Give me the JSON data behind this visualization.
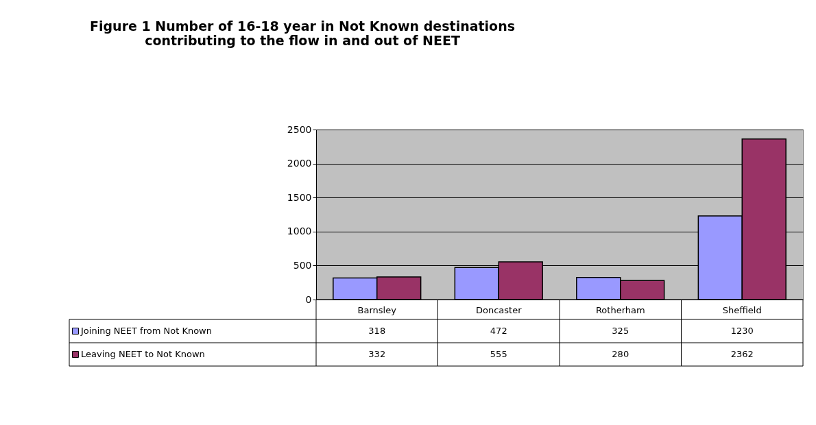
{
  "chart_data": {
    "type": "bar",
    "title": "Figure 1 Number of 16-18 year in Not Known destinations contributing to the flow in and out of NEET",
    "categories": [
      "Barnsley",
      "Doncaster",
      "Rotherham",
      "Sheffield"
    ],
    "series": [
      {
        "name": "Joining NEET from Not Known",
        "color": "#9999ff",
        "values": [
          318,
          472,
          325,
          1230
        ]
      },
      {
        "name": "Leaving NEET to Not Known",
        "color": "#993366",
        "values": [
          332,
          555,
          280,
          2362
        ]
      }
    ],
    "ylim": [
      0,
      2500
    ],
    "yticks": [
      0,
      500,
      1000,
      1500,
      2000,
      2500
    ],
    "grid": "y",
    "legend": "bottom",
    "data_labels": true
  }
}
